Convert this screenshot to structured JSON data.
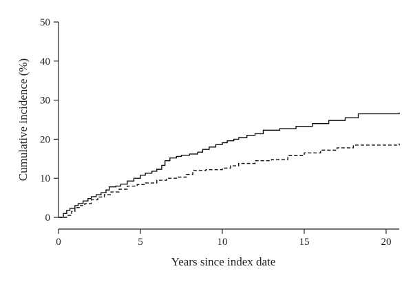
{
  "chart_data": {
    "type": "line",
    "title": "",
    "xlabel": "Years since index date",
    "ylabel": "Cumulative incidence (%)",
    "xlim": [
      0,
      20.8
    ],
    "ylim": [
      0,
      50
    ],
    "xticks": [
      0,
      5,
      10,
      15,
      20
    ],
    "yticks": [
      0,
      10,
      20,
      30,
      40,
      50
    ],
    "grid": false,
    "legend": "none",
    "series": [
      {
        "style": "solid",
        "color": "#111111",
        "step": true,
        "x": [
          0,
          0.3,
          0.5,
          0.7,
          1.0,
          1.2,
          1.5,
          1.8,
          2.0,
          2.3,
          2.6,
          2.9,
          3.1,
          3.5,
          3.8,
          4.2,
          4.6,
          5.0,
          5.3,
          5.7,
          6.0,
          6.3,
          6.5,
          6.8,
          7.2,
          7.5,
          8.0,
          8.5,
          8.8,
          9.2,
          9.6,
          10.0,
          10.3,
          10.7,
          11.0,
          11.5,
          12.0,
          12.5,
          13.5,
          14.5,
          15.5,
          16.5,
          17.5,
          18.3,
          20.8
        ],
        "y": [
          0,
          1.0,
          1.8,
          2.3,
          3.0,
          3.5,
          4.2,
          4.8,
          5.3,
          5.8,
          6.3,
          7.0,
          7.8,
          8.0,
          8.5,
          9.3,
          10.0,
          10.8,
          11.3,
          11.8,
          12.3,
          13.3,
          14.5,
          15.2,
          15.6,
          15.9,
          16.2,
          16.7,
          17.4,
          18.0,
          18.6,
          19.1,
          19.6,
          20.0,
          20.4,
          21.0,
          21.4,
          22.3,
          22.7,
          23.3,
          24.0,
          24.8,
          25.5,
          26.5,
          26.8
        ]
      },
      {
        "style": "dashed",
        "color": "#111111",
        "step": true,
        "x": [
          0,
          0.5,
          0.8,
          1.0,
          1.3,
          1.6,
          2.0,
          2.4,
          2.8,
          3.2,
          3.7,
          4.2,
          4.8,
          5.3,
          6.0,
          6.6,
          7.2,
          7.8,
          8.2,
          9.0,
          10.0,
          10.5,
          11.0,
          12.0,
          13.0,
          14.0,
          15.0,
          16.0,
          17.0,
          18.0,
          20.8
        ],
        "y": [
          0,
          0.5,
          1.5,
          2.5,
          3.0,
          3.5,
          4.5,
          5.2,
          5.8,
          6.5,
          7.2,
          8.0,
          8.4,
          8.8,
          9.5,
          10.0,
          10.3,
          11.0,
          12.0,
          12.2,
          12.6,
          13.2,
          13.8,
          14.5,
          14.8,
          15.8,
          16.5,
          17.2,
          17.8,
          18.5,
          18.9
        ]
      }
    ]
  }
}
